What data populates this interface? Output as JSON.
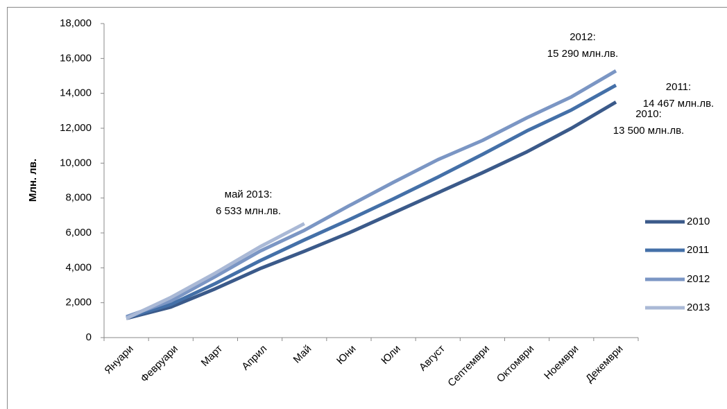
{
  "chart_data": {
    "type": "line",
    "y_axis_label": "Млн. лв.",
    "categories": [
      "Януари",
      "Февруари",
      "Март",
      "Април",
      "Май",
      "Юни",
      "Юли",
      "Август",
      "Септември",
      "Октомври",
      "Ноември",
      "Декември"
    ],
    "series": [
      {
        "name": "2010",
        "color": "#3b5a8a",
        "values": [
          1100,
          1750,
          2800,
          3950,
          4950,
          6000,
          7150,
          8300,
          9450,
          10650,
          12000,
          13500
        ]
      },
      {
        "name": "2011",
        "color": "#4470a8",
        "values": [
          1150,
          1900,
          3100,
          4400,
          5600,
          6750,
          7950,
          9200,
          10500,
          11850,
          13050,
          14467
        ]
      },
      {
        "name": "2012",
        "color": "#7b96c4",
        "values": [
          1200,
          2100,
          3500,
          4950,
          6150,
          7550,
          8900,
          10200,
          11300,
          12600,
          13800,
          15290
        ]
      },
      {
        "name": "2013",
        "color": "#aab9d6",
        "values": [
          1100,
          2300,
          3700,
          5200,
          6533,
          null,
          null,
          null,
          null,
          null,
          null,
          null
        ]
      }
    ],
    "ylim": [
      0,
      18000
    ],
    "yticks": [
      0,
      {
        "value": 2000,
        "label": "2,000"
      },
      {
        "value": 4000,
        "label": "4,000"
      },
      {
        "value": 6000,
        "label": "6,000"
      },
      {
        "value": 8000,
        "label": "8,000"
      },
      {
        "value": 10000,
        "label": "10,000"
      },
      {
        "value": 12000,
        "label": "12,000"
      },
      {
        "value": 14000,
        "label": "14,000"
      },
      {
        "value": 16000,
        "label": "16,000"
      },
      {
        "value": 18000,
        "label": "18,000"
      }
    ],
    "legend": "right",
    "annotations": [
      {
        "text": [
          "май 2013:",
          "6 533 млн.лв."
        ]
      },
      {
        "text": [
          "2012:",
          "15 290 млн.лв."
        ]
      },
      {
        "text": [
          "2011:",
          "14 467 млн.лв."
        ]
      },
      {
        "text": [
          "2010:",
          "13 500 млн.лв."
        ]
      }
    ]
  }
}
